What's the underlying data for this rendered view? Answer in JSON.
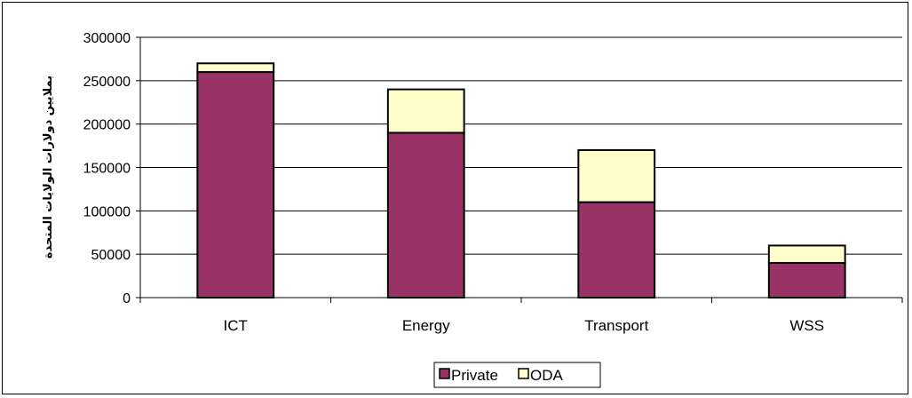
{
  "chart_data": {
    "type": "bar",
    "stacked": true,
    "categories": [
      "ICT",
      "Energy",
      "Transport",
      "WSS"
    ],
    "series": [
      {
        "name": "Private",
        "values": [
          260000,
          190000,
          110000,
          40000
        ],
        "color": "#993366"
      },
      {
        "name": "ODA",
        "values": [
          10000,
          50000,
          60000,
          20000
        ],
        "color": "#FFFFCC"
      }
    ],
    "ylim": [
      0,
      300000
    ],
    "yticks": [
      0,
      50000,
      100000,
      150000,
      200000,
      250000,
      300000
    ],
    "ylabel": "بملايين دولارات الولايات المتحدة",
    "xlabel": "",
    "title": "",
    "grid": true,
    "legend_position": "bottom"
  }
}
